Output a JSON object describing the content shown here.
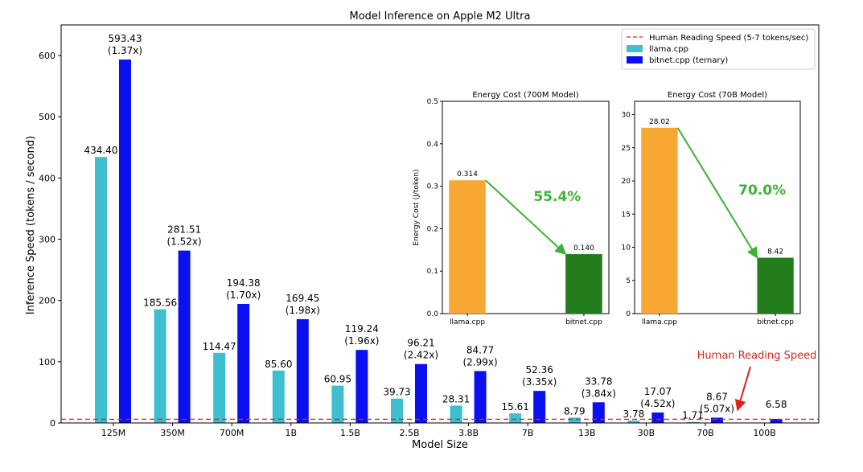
{
  "chart_data": [
    {
      "type": "bar",
      "title": "Model Inference on Apple M2 Ultra",
      "xlabel": "Model Size",
      "ylabel": "Inference Speed (tokens / second)",
      "ylim": [
        0,
        650
      ],
      "yticks": [
        0,
        100,
        200,
        300,
        400,
        500,
        600
      ],
      "categories": [
        "125M",
        "350M",
        "700M",
        "1B",
        "1.5B",
        "2.5B",
        "3.8B",
        "7B",
        "13B",
        "30B",
        "70B",
        "100B"
      ],
      "series": [
        {
          "name": "llama.cpp",
          "color": "#3dbfcf",
          "values": [
            434.4,
            185.56,
            114.47,
            85.6,
            60.95,
            39.73,
            28.31,
            15.61,
            8.79,
            3.78,
            1.71,
            null
          ],
          "labels": [
            "434.40",
            "185.56",
            "114.47",
            "85.60",
            "60.95",
            "39.73",
            "28.31",
            "15.61",
            "8.79",
            "3.78",
            "1.71",
            ""
          ]
        },
        {
          "name": "bitnet.cpp (ternary)",
          "color": "#0a10f0",
          "values": [
            593.43,
            281.51,
            194.38,
            169.45,
            119.24,
            96.21,
            84.77,
            52.36,
            33.78,
            17.07,
            8.67,
            6.58
          ],
          "labels": [
            "593.43",
            "281.51",
            "194.38",
            "169.45",
            "119.24",
            "96.21",
            "84.77",
            "52.36",
            "33.78",
            "17.07",
            "8.67",
            "6.58"
          ],
          "speedups": [
            "(1.37x)",
            "(1.52x)",
            "(1.70x)",
            "(1.98x)",
            "(1.96x)",
            "(2.42x)",
            "(2.99x)",
            "(3.35x)",
            "(3.84x)",
            "(4.52x)",
            "(5.07x)",
            ""
          ]
        }
      ],
      "reference_line": {
        "name": "Human Reading Speed (5-7 tokens/sec)",
        "value": 6,
        "color": "#e0221a",
        "style": "dashed"
      },
      "annotation": {
        "text": "Human Reading Speed",
        "color": "#e0221a"
      },
      "legend_position": "top-right",
      "grid": false
    },
    {
      "type": "bar",
      "title": "Energy Cost (700M Model)",
      "ylabel": "Energy Cost (J/token)",
      "ylim": [
        0,
        0.5
      ],
      "yticks": [
        0.0,
        0.1,
        0.2,
        0.3,
        0.4,
        0.5
      ],
      "ytick_labels": [
        "0.0",
        "0.1",
        "0.2",
        "0.3",
        "0.4",
        "0.5"
      ],
      "categories": [
        "llama.cpp",
        "bitnet.cpp"
      ],
      "values": [
        0.314,
        0.14
      ],
      "value_labels": [
        "0.314",
        "0.140"
      ],
      "colors": [
        "#f7a833",
        "#237d1d"
      ],
      "reduction": "55.4%",
      "reduction_color": "#3ab333"
    },
    {
      "type": "bar",
      "title": "Energy Cost (70B Model)",
      "ylim": [
        0,
        32
      ],
      "yticks": [
        0,
        5,
        10,
        15,
        20,
        25,
        30
      ],
      "ytick_labels": [
        "0",
        "5",
        "10",
        "15",
        "20",
        "25",
        "30"
      ],
      "categories": [
        "llama.cpp",
        "bitnet.cpp"
      ],
      "values": [
        28.02,
        8.42
      ],
      "value_labels": [
        "28.02",
        "8.42"
      ],
      "colors": [
        "#f7a833",
        "#237d1d"
      ],
      "reduction": "70.0%",
      "reduction_color": "#3ab333"
    }
  ]
}
